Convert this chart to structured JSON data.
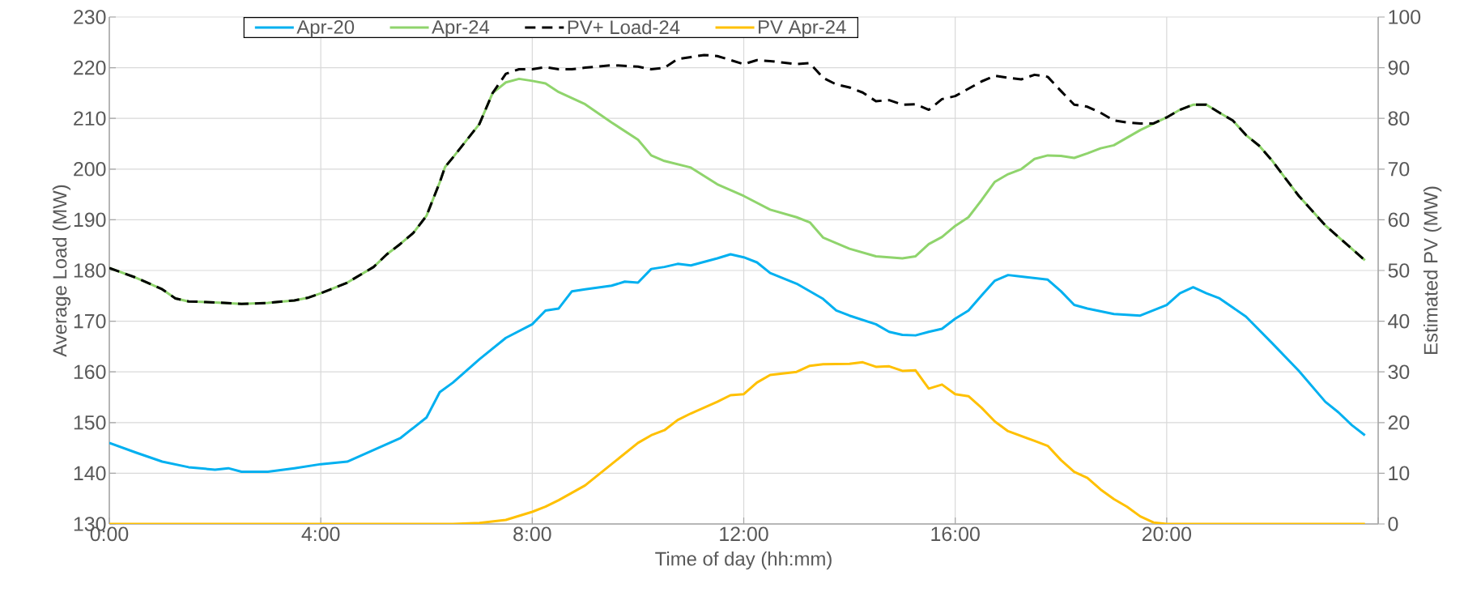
{
  "chart_data": {
    "type": "line",
    "xlabel": "Time of day (hh:mm)",
    "ylabel": "Average Load (MW)",
    "y2label": "Estimated PV (MW)",
    "xlim": [
      0,
      24
    ],
    "xticks": [
      {
        "value": 0,
        "label": "0:00"
      },
      {
        "value": 4,
        "label": "4:00"
      },
      {
        "value": 8,
        "label": "8:00"
      },
      {
        "value": 12,
        "label": "12:00"
      },
      {
        "value": 16,
        "label": "16:00"
      },
      {
        "value": 20,
        "label": "20:00"
      },
      {
        "value": 24,
        "label": null
      }
    ],
    "ylim": [
      130,
      230
    ],
    "yticks": [
      130,
      140,
      150,
      160,
      170,
      180,
      190,
      200,
      210,
      220,
      230
    ],
    "y2lim": [
      0,
      100
    ],
    "y2ticks": [
      0,
      10,
      20,
      30,
      40,
      50,
      60,
      70,
      80,
      90,
      100
    ],
    "grid": true,
    "legend": "top",
    "marker": "none",
    "series": [
      {
        "name": "Apr-20",
        "color": "#00b0f0",
        "line_style": "solid",
        "x": [
          0,
          0.5,
          1,
          1.5,
          2,
          2.25,
          2.5,
          3,
          3.5,
          4,
          4.5,
          5,
          5.5,
          6,
          6.25,
          6.5,
          7,
          7.5,
          8,
          8.25,
          8.5,
          8.75,
          9,
          9.5,
          9.75,
          10,
          10.25,
          10.5,
          10.75,
          11,
          11.5,
          11.75,
          12,
          12.25,
          12.5,
          13,
          13.5,
          13.75,
          14,
          14.5,
          14.75,
          15,
          15.25,
          15.5,
          15.75,
          16,
          16.25,
          16.5,
          16.75,
          17,
          17.25,
          17.75,
          18,
          18.25,
          18.5,
          19,
          19.5,
          20,
          20.25,
          20.5,
          20.75,
          21,
          21.5,
          22,
          22.5,
          23,
          23.25,
          23.5,
          23.75
        ],
        "values": [
          146.0,
          144.1,
          142.3,
          141.2,
          140.7,
          141.0,
          140.3,
          140.3,
          141.0,
          141.8,
          142.3,
          144.6,
          146.9,
          151.0,
          156.0,
          157.9,
          162.5,
          166.7,
          169.4,
          172.1,
          172.5,
          175.9,
          176.3,
          177.0,
          177.8,
          177.6,
          180.3,
          180.7,
          181.3,
          181.0,
          182.4,
          183.2,
          182.6,
          181.6,
          179.5,
          177.4,
          174.4,
          172.1,
          171.1,
          169.4,
          167.9,
          167.3,
          167.2,
          167.9,
          168.5,
          170.5,
          172.1,
          175.1,
          178.0,
          179.1,
          178.8,
          178.2,
          175.9,
          173.2,
          172.5,
          171.4,
          171.1,
          173.2,
          175.5,
          176.7,
          175.5,
          174.5,
          170.9,
          165.6,
          160.2,
          154.1,
          152.0,
          149.5,
          147.5
        ]
      },
      {
        "name": "Apr-24",
        "color": "#8fd46c",
        "line_style": "solid",
        "x": [
          0,
          0.5,
          1,
          1.25,
          1.5,
          2,
          2.5,
          3,
          3.5,
          3.75,
          4,
          4.5,
          5,
          5.25,
          5.5,
          5.75,
          6,
          6.25,
          6.35,
          6.5,
          7,
          7.25,
          7.5,
          7.75,
          8,
          8.25,
          8.5,
          9,
          9.5,
          10,
          10.25,
          10.5,
          11,
          11.5,
          12,
          12.5,
          13,
          13.25,
          13.5,
          14,
          14.5,
          15,
          15.25,
          15.5,
          15.75,
          16,
          16.25,
          16.5,
          16.75,
          17,
          17.25,
          17.5,
          17.75,
          18,
          18.25,
          18.5,
          18.75,
          19,
          19.25,
          19.5,
          20,
          20.25,
          20.5,
          20.75,
          21,
          21.25,
          21.5,
          21.75,
          22,
          22.25,
          22.5,
          23,
          23.5,
          23.75
        ],
        "values": [
          180.5,
          178.6,
          176.3,
          174.5,
          173.9,
          173.7,
          173.4,
          173.6,
          174.1,
          174.6,
          175.5,
          177.6,
          180.7,
          183.2,
          185.2,
          187.4,
          190.8,
          197.4,
          200.4,
          202.3,
          208.9,
          215.0,
          217.1,
          217.8,
          217.4,
          216.9,
          215.2,
          212.8,
          209.2,
          205.8,
          202.7,
          201.6,
          200.3,
          197.0,
          194.7,
          192.0,
          190.5,
          189.5,
          186.5,
          184.3,
          182.8,
          182.4,
          182.8,
          185.2,
          186.6,
          188.8,
          190.5,
          193.9,
          197.5,
          199.0,
          200.0,
          202.0,
          202.7,
          202.6,
          202.2,
          203.1,
          204.1,
          204.7,
          206.2,
          207.7,
          210.2,
          211.7,
          212.7,
          212.7,
          211.1,
          209.6,
          206.7,
          204.6,
          201.6,
          198.1,
          194.7,
          188.9,
          184.3,
          182.0
        ]
      },
      {
        "name": "PV+ Load-24",
        "color": "#000000",
        "line_style": "dashed",
        "x": [
          0,
          0.5,
          1,
          1.25,
          1.5,
          2,
          2.5,
          3,
          3.5,
          3.75,
          4,
          4.5,
          5,
          5.25,
          5.5,
          5.75,
          6,
          6.25,
          6.35,
          6.5,
          7,
          7.25,
          7.5,
          7.75,
          8,
          8.25,
          8.5,
          8.75,
          9,
          9.5,
          10,
          10.25,
          10.5,
          10.75,
          11,
          11.25,
          11.5,
          11.75,
          12,
          12.25,
          12.5,
          13,
          13.25,
          13.5,
          13.75,
          14,
          14.25,
          14.5,
          14.75,
          15,
          15.25,
          15.5,
          15.75,
          16,
          16.5,
          16.75,
          17,
          17.25,
          17.5,
          17.75,
          18,
          18.25,
          18.5,
          18.75,
          19,
          19.25,
          19.5,
          19.75,
          20,
          20.25,
          20.5,
          20.75,
          21,
          21.25,
          21.5,
          21.75,
          22,
          22.25,
          22.5,
          23,
          23.5,
          23.75
        ],
        "values": [
          180.5,
          178.6,
          176.3,
          174.5,
          173.9,
          173.7,
          173.4,
          173.6,
          174.1,
          174.6,
          175.5,
          177.6,
          180.7,
          183.2,
          185.2,
          187.4,
          190.8,
          197.4,
          200.4,
          202.3,
          208.9,
          215.0,
          218.8,
          219.7,
          219.7,
          220.1,
          219.7,
          219.7,
          220.0,
          220.5,
          220.2,
          219.7,
          220.0,
          221.7,
          222.1,
          222.5,
          222.3,
          221.5,
          220.7,
          221.5,
          221.3,
          220.7,
          220.9,
          218.0,
          216.7,
          216.1,
          215.1,
          213.4,
          213.6,
          212.7,
          212.8,
          211.7,
          213.8,
          214.4,
          217.3,
          218.4,
          218.0,
          217.7,
          218.6,
          218.2,
          215.4,
          212.7,
          212.3,
          211.1,
          209.6,
          209.2,
          209.0,
          209.0,
          210.2,
          211.7,
          212.7,
          212.7,
          211.1,
          209.6,
          206.7,
          204.6,
          201.6,
          198.1,
          194.7,
          188.9,
          184.3,
          182.0
        ]
      },
      {
        "name": "PV Apr-24",
        "color": "#ffc000",
        "line_style": "solid",
        "axis": "y2",
        "x": [
          0,
          2,
          4,
          6,
          6.5,
          7,
          7.5,
          7.75,
          8,
          8.25,
          8.5,
          9,
          9.5,
          10,
          10.25,
          10.5,
          10.75,
          11,
          11.5,
          11.75,
          12,
          12.25,
          12.5,
          13,
          13.25,
          13.5,
          14,
          14.25,
          14.5,
          14.75,
          15,
          15.25,
          15.5,
          15.75,
          16,
          16.25,
          16.5,
          16.75,
          17,
          17.5,
          17.75,
          18,
          18.25,
          18.5,
          18.75,
          19,
          19.25,
          19.5,
          19.75,
          20,
          22,
          23.75
        ],
        "values": [
          0,
          0,
          0,
          0,
          0,
          0.2,
          0.8,
          1.6,
          2.4,
          3.4,
          4.7,
          7.6,
          11.8,
          16.0,
          17.5,
          18.5,
          20.5,
          21.8,
          24.1,
          25.4,
          25.6,
          27.9,
          29.4,
          30.0,
          31.2,
          31.5,
          31.6,
          31.9,
          31.0,
          31.1,
          30.2,
          30.3,
          26.7,
          27.5,
          25.6,
          25.2,
          22.9,
          20.2,
          18.3,
          16.4,
          15.4,
          12.6,
          10.3,
          9.1,
          6.8,
          4.9,
          3.4,
          1.5,
          0.3,
          0,
          0,
          0
        ]
      }
    ]
  }
}
